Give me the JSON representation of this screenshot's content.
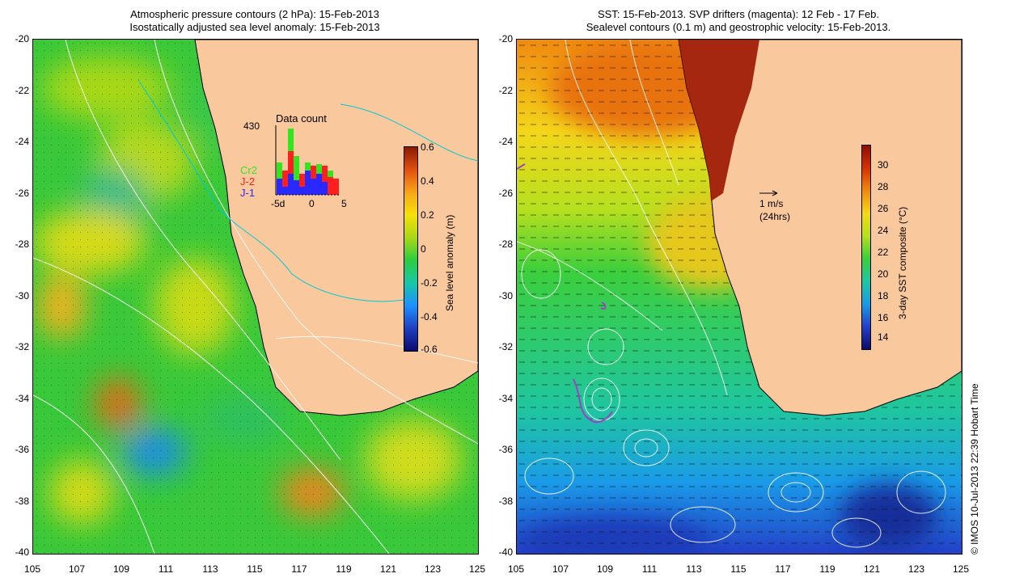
{
  "left_panel": {
    "title_line1": "Atmospheric pressure contours (2 hPa): 15-Feb-2013",
    "title_line2": "Isostatically adjusted sea level anomaly: 15-Feb-2013",
    "colorbar": {
      "label": "Sea level anomaly (m)",
      "ticks": [
        "0.6",
        "0.4",
        "0.2",
        "0",
        "-0.2",
        "-0.4",
        "-0.6"
      ],
      "colors": [
        "#8b1a00",
        "#e05010",
        "#f7a51a",
        "#f5e10a",
        "#a8d816",
        "#2ecc40",
        "#19c7a6",
        "#1e90ff",
        "#1f3fbf",
        "#0a0a6e"
      ]
    },
    "histogram": {
      "title": "Data count",
      "max_label": "430",
      "x_ticks": [
        "-5d",
        "0",
        "5"
      ],
      "legend": [
        {
          "name": "Cr2",
          "color": "#32e61e"
        },
        {
          "name": "J-2",
          "color": "#ff1f1f"
        },
        {
          "name": "J-1",
          "color": "#2828ff"
        }
      ]
    }
  },
  "right_panel": {
    "title_line1": "SST: 15-Feb-2013. SVP drifters (magenta): 12 Feb - 17 Feb.",
    "title_line2": "Sealevel contours (0.1 m) and geostrophic velocity: 15-Feb-2013.",
    "scale_arrow": {
      "value": "1 m/s",
      "note": "(24hrs)"
    },
    "colorbar": {
      "label": "3-day SST composite (°C)",
      "ticks": [
        "30",
        "28",
        "26",
        "24",
        "22",
        "20",
        "18",
        "16",
        "14"
      ],
      "colors": [
        "#8b0f00",
        "#d43200",
        "#f08a10",
        "#f4d71a",
        "#b6e01e",
        "#3ccf3c",
        "#1fc6a0",
        "#1a9be8",
        "#2440c8",
        "#0c0c6a"
      ]
    }
  },
  "axes": {
    "y_ticks": [
      "-20",
      "-22",
      "-24",
      "-26",
      "-28",
      "-30",
      "-32",
      "-34",
      "-36",
      "-38",
      "-40"
    ],
    "x_ticks": [
      "105",
      "107",
      "109",
      "111",
      "113",
      "115",
      "117",
      "119",
      "121",
      "123",
      "125"
    ]
  },
  "credit": "© IMOS 10-Jul-2013 22:39 Hobart Time",
  "colors": {
    "land": "#f9c89c",
    "coast": "#000000",
    "contour": "#ffffff",
    "isobath": "#00c8d8",
    "drifter": "#a040c0"
  }
}
